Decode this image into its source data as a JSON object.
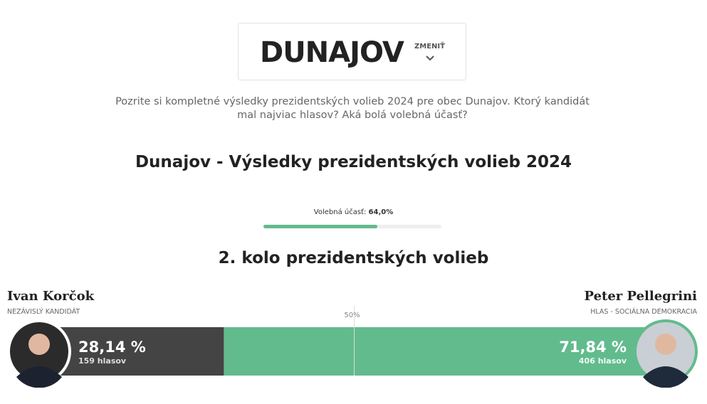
{
  "header": {
    "title": "DUNAJOV",
    "change": "ZMENIŤ",
    "intro": "Pozrite si kompletné výsledky prezidentských volieb 2024 pre obec Dunajov. Ktorý kandidát mal najviac hlasov? Aká bolá volebná účasť?"
  },
  "results": {
    "title": "Dunajov - Výsledky prezidentských volieb 2024",
    "turnout": {
      "label": "Volebná účasť:",
      "value": 64.0,
      "value_label": "64,0%"
    },
    "round_title": "2. kolo prezidentských volieb",
    "midpoint": {
      "value": 50,
      "label": "50%"
    },
    "candidates": [
      {
        "name": "Ivan Korčok",
        "party": "NEZÁVISLÝ KANDIDÁT",
        "share": 28.14,
        "share_label": "28,14 %",
        "votes_label": "159 hlasov",
        "color": "#444444"
      },
      {
        "name": "Peter Pellegrini",
        "party": "HLAS - SOCIÁLNA DEMOKRACIA",
        "share": 71.84,
        "share_label": "71,84 %",
        "votes_label": "406 hlasov",
        "color": "#62bb8d"
      }
    ]
  }
}
